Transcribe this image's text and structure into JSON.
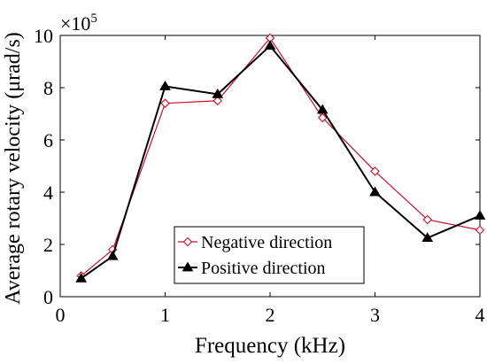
{
  "chart_data": {
    "type": "line",
    "xlabel": "Frequency (kHz)",
    "ylabel": "Average rotary velocity (μrad/s)",
    "exponent_base": "×10",
    "exponent_power": "5",
    "xlim": [
      0,
      4
    ],
    "ylim": [
      0,
      10
    ],
    "xticks": [
      "0",
      "1",
      "2",
      "3",
      "4"
    ],
    "yticks": [
      "0",
      "2",
      "4",
      "6",
      "8",
      "10"
    ],
    "x": [
      0.2,
      0.5,
      1.0,
      1.5,
      2.0,
      2.5,
      3.0,
      3.5,
      4.0
    ],
    "series": [
      {
        "name": "Negative direction",
        "color": "#c8102e",
        "marker": "diamond-open",
        "values": [
          0.8,
          1.8,
          7.4,
          7.5,
          9.9,
          6.85,
          4.8,
          2.95,
          2.55
        ]
      },
      {
        "name": "Positive direction",
        "color": "#000000",
        "marker": "triangle-filled",
        "values": [
          0.7,
          1.55,
          8.05,
          7.75,
          9.6,
          7.15,
          4.0,
          2.25,
          3.1
        ]
      }
    ],
    "legend_position": "bottom-center",
    "grid": false
  }
}
